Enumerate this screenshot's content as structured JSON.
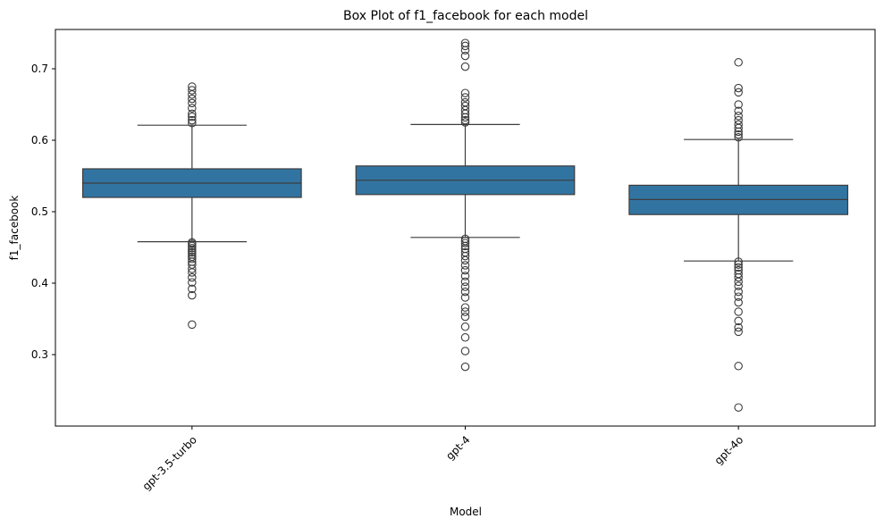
{
  "chart_data": {
    "type": "box",
    "title": "Box Plot of f1_facebook for each model",
    "xlabel": "Model",
    "ylabel": "f1_facebook",
    "categories": [
      "gpt-3.5-turbo",
      "gpt-4",
      "gpt-4o"
    ],
    "ylim": [
      0.2,
      0.755
    ],
    "yticks": [
      0.3,
      0.4,
      0.5,
      0.6,
      0.7
    ],
    "ytick_labels": [
      "0.3",
      "0.4",
      "0.5",
      "0.6",
      "0.7"
    ],
    "grid": false,
    "box_color": "#3274a1",
    "line_color": "#3d3d3d",
    "boxes": [
      {
        "category": "gpt-3.5-turbo",
        "whisker_low": 0.458,
        "q1": 0.52,
        "median": 0.54,
        "q3": 0.56,
        "whisker_high": 0.621,
        "outliers": [
          0.342,
          0.383,
          0.392,
          0.401,
          0.408,
          0.415,
          0.42,
          0.426,
          0.43,
          0.434,
          0.437,
          0.44,
          0.443,
          0.446,
          0.449,
          0.452,
          0.455,
          0.457,
          0.624,
          0.628,
          0.633,
          0.637,
          0.645,
          0.652,
          0.658,
          0.664,
          0.67,
          0.675
        ]
      },
      {
        "category": "gpt-4",
        "whisker_low": 0.464,
        "q1": 0.524,
        "median": 0.544,
        "q3": 0.564,
        "whisker_high": 0.622,
        "outliers": [
          0.283,
          0.305,
          0.324,
          0.339,
          0.353,
          0.36,
          0.366,
          0.38,
          0.388,
          0.395,
          0.402,
          0.41,
          0.418,
          0.425,
          0.432,
          0.438,
          0.443,
          0.448,
          0.452,
          0.456,
          0.459,
          0.462,
          0.625,
          0.628,
          0.632,
          0.637,
          0.642,
          0.648,
          0.653,
          0.66,
          0.666,
          0.703,
          0.718,
          0.726,
          0.732,
          0.736
        ]
      },
      {
        "category": "gpt-4o",
        "whisker_low": 0.431,
        "q1": 0.496,
        "median": 0.517,
        "q3": 0.537,
        "whisker_high": 0.601,
        "outliers": [
          0.226,
          0.284,
          0.332,
          0.338,
          0.347,
          0.36,
          0.373,
          0.381,
          0.388,
          0.396,
          0.402,
          0.408,
          0.413,
          0.418,
          0.422,
          0.426,
          0.43,
          0.604,
          0.608,
          0.612,
          0.617,
          0.622,
          0.628,
          0.634,
          0.641,
          0.65,
          0.667,
          0.673,
          0.709
        ]
      }
    ]
  }
}
